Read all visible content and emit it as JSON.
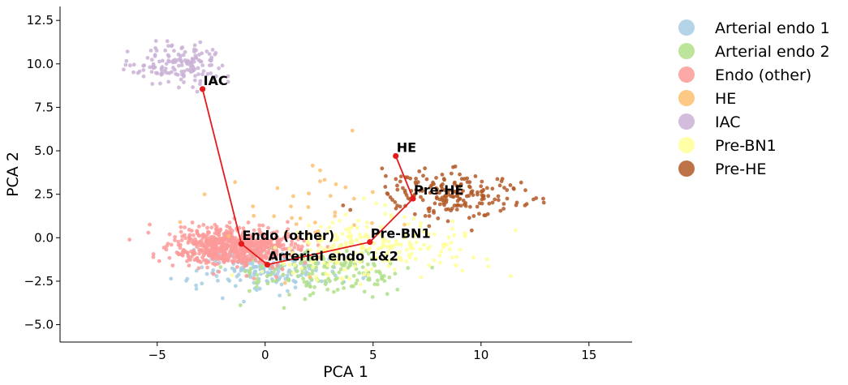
{
  "chart_data": {
    "type": "scatter",
    "xlabel": "PCA 1",
    "ylabel": "PCA 2",
    "xlim": [
      -9.5,
      17.0
    ],
    "ylim": [
      -6.0,
      13.3
    ],
    "xticks": [
      -5,
      0,
      5,
      10,
      15
    ],
    "xtick_labels": [
      "−5",
      "0",
      "5",
      "10",
      "15"
    ],
    "yticks": [
      -5.0,
      -2.5,
      0.0,
      2.5,
      5.0,
      7.5,
      10.0,
      12.5
    ],
    "ytick_labels": [
      "−5.0",
      "−2.5",
      "0.0",
      "2.5",
      "5.0",
      "7.5",
      "10.0",
      "12.5"
    ],
    "grid": false,
    "legend_position": "outside-right",
    "series": [
      {
        "name": "Arterial endo 1",
        "color": "#a6cee3",
        "center": [
          0.0,
          -1.8
        ],
        "spread": [
          3.0,
          1.1
        ],
        "count": 180
      },
      {
        "name": "Arterial endo 2",
        "color": "#b2df8a",
        "center": [
          2.5,
          -2.0
        ],
        "spread": [
          3.5,
          1.2
        ],
        "count": 170
      },
      {
        "name": "Endo (other)",
        "color": "#fb9a99",
        "center": [
          -1.5,
          -0.5
        ],
        "spread": [
          2.5,
          1.0
        ],
        "count": 700
      },
      {
        "name": "HE",
        "color": "#fdbf6f",
        "center": [
          2.0,
          1.0
        ],
        "spread": [
          4.0,
          3.0
        ],
        "count": 40
      },
      {
        "name": "IAC",
        "color": "#cab2d6",
        "center": [
          -4.0,
          10.0
        ],
        "spread": [
          2.0,
          1.0
        ],
        "count": 150
      },
      {
        "name": "Pre-BN1",
        "color": "#ffff99",
        "center": [
          5.0,
          -0.5
        ],
        "spread": [
          4.5,
          1.5
        ],
        "count": 220
      },
      {
        "name": "Pre-HE",
        "color": "#b15928",
        "center": [
          8.5,
          2.5
        ],
        "spread": [
          3.0,
          1.2
        ],
        "count": 200
      }
    ],
    "trajectory": {
      "color": "#e41a1c",
      "points": [
        {
          "label": "IAC",
          "x": -2.9,
          "y": 8.55
        },
        {
          "label": "Endo (other)",
          "x": -1.1,
          "y": -0.35
        },
        {
          "label": "Arterial endo 1&2",
          "x": 0.1,
          "y": -1.55
        },
        {
          "label": "Pre-BN1",
          "x": 4.85,
          "y": -0.25
        },
        {
          "label": "Pre-HE",
          "x": 6.85,
          "y": 2.25
        },
        {
          "label": "HE",
          "x": 6.05,
          "y": 4.7
        }
      ]
    }
  }
}
